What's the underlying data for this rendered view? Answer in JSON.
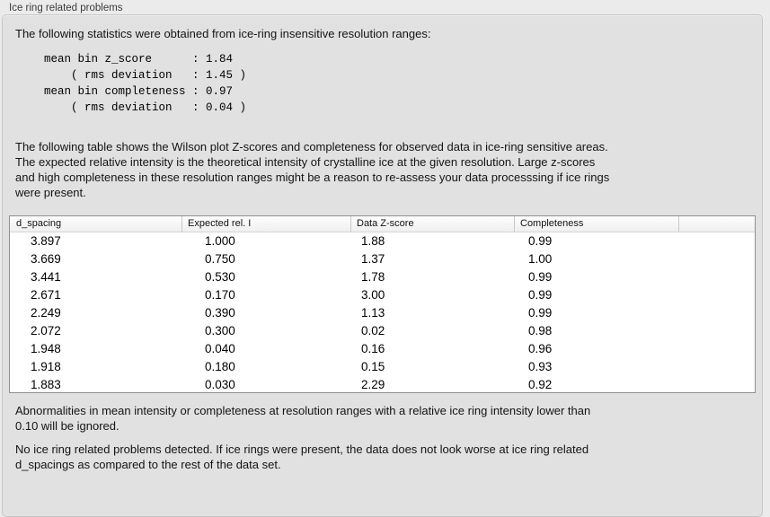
{
  "panel": {
    "title": "Ice ring related problems"
  },
  "intro_text": "The following statistics were obtained from ice-ring insensitive resolution ranges:",
  "stats_block": {
    "text": "mean bin z_score      : 1.84\n    ( rms deviation   : 1.45 )\nmean bin completeness : 0.97\n    ( rms deviation   : 0.04 )",
    "mean_bin_z_score": "1.84",
    "z_score_rms_deviation": "1.45",
    "mean_bin_completeness": "0.97",
    "completeness_rms_deviation": "0.04"
  },
  "description_text": "The following table shows the Wilson plot Z-scores and completeness for observed data in ice-ring sensitive areas.\nThe expected relative intensity is the theoretical intensity of crystalline ice at the given resolution. Large z-scores\nand high completeness in these resolution ranges might be a reason to re-assess your data processsing if ice rings\nwere present.",
  "table": {
    "columns": [
      "d_spacing",
      "Expected rel. I",
      "Data Z-score",
      "Completeness",
      ""
    ],
    "rows": [
      [
        "3.897",
        "1.000",
        "1.88",
        "0.99"
      ],
      [
        "3.669",
        "0.750",
        "1.37",
        "1.00"
      ],
      [
        "3.441",
        "0.530",
        "1.78",
        "0.99"
      ],
      [
        "2.671",
        "0.170",
        "3.00",
        "0.99"
      ],
      [
        "2.249",
        "0.390",
        "1.13",
        "0.99"
      ],
      [
        "2.072",
        "0.300",
        "0.02",
        "0.98"
      ],
      [
        "1.948",
        "0.040",
        "0.16",
        "0.96"
      ],
      [
        "1.918",
        "0.180",
        "0.15",
        "0.93"
      ],
      [
        "1.883",
        "0.030",
        "2.29",
        "0.92"
      ]
    ]
  },
  "ignore_note_text": "Abnormalities in mean intensity or completeness at resolution ranges with a relative ice ring intensity lower than\n0.10 will be ignored.",
  "conclusion_text": "No ice ring related problems detected. If ice rings were present, the data does not look worse at ice ring related\nd_spacings as compared to the rest of the data set.",
  "colors": {
    "page_bg": "#ebebeb",
    "panel_bg": "#e1e1e1",
    "table_bg": "#ffffff",
    "table_border": "#8f8f8f",
    "header_separator": "#c9c9c9"
  }
}
